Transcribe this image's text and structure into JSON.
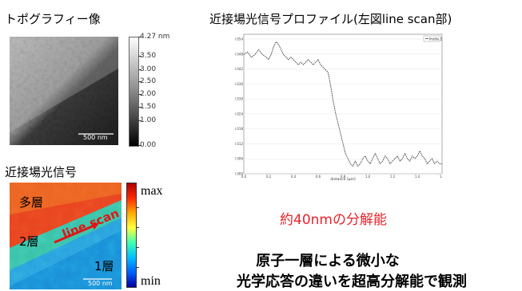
{
  "topography": {
    "title": "トポグラフィー像",
    "scalebar": "500 nm",
    "colorbar_ticks": [
      "4.27 nm",
      "3.50",
      "3.00",
      "2.50",
      "2.00",
      "1.50",
      "1.00",
      "0.00"
    ]
  },
  "nearfield": {
    "title": "近接場光信号",
    "scalebar": "500 nm",
    "labels": {
      "multi": "多層",
      "two": "2層",
      "one": "1層",
      "scan": "line scan"
    },
    "colorbar": {
      "max": "max",
      "min": "min"
    }
  },
  "profile": {
    "title": "近接場光信号プロファイル(左図line scan部)",
    "legend": "Profile 1",
    "resolution_label": "約40nmの分解能",
    "marker_color": "#e8232a",
    "chart_data": {
      "type": "line",
      "x": [
        0.0,
        0.03,
        0.06,
        0.09,
        0.12,
        0.15,
        0.18,
        0.2,
        0.22,
        0.24,
        0.26,
        0.28,
        0.3,
        0.32,
        0.34,
        0.36,
        0.38,
        0.4,
        0.42,
        0.44,
        0.46,
        0.48,
        0.5,
        0.52,
        0.54,
        0.56,
        0.58,
        0.6,
        0.62,
        0.64,
        0.66,
        0.68,
        0.7,
        0.72,
        0.74,
        0.76,
        0.78,
        0.8,
        0.82,
        0.84,
        0.86,
        0.88,
        0.9,
        0.92,
        0.94,
        0.96,
        0.98,
        1.0,
        1.02,
        1.04,
        1.06,
        1.08,
        1.1,
        1.12,
        1.14,
        1.16,
        1.18,
        1.2,
        1.22,
        1.24,
        1.26,
        1.28,
        1.3,
        1.32,
        1.34,
        1.36,
        1.38,
        1.4,
        1.42,
        1.44,
        1.46,
        1.48,
        1.5,
        1.52,
        1.54,
        1.56,
        1.58,
        1.6
      ],
      "values": [
        0.047,
        0.048,
        0.046,
        0.047,
        0.049,
        0.047,
        0.046,
        0.045,
        0.047,
        0.05,
        0.052,
        0.051,
        0.049,
        0.047,
        0.046,
        0.045,
        0.046,
        0.045,
        0.044,
        0.043,
        0.044,
        0.043,
        0.044,
        0.045,
        0.044,
        0.043,
        0.044,
        0.045,
        0.043,
        0.042,
        0.041,
        0.04,
        0.035,
        0.029,
        0.024,
        0.02,
        0.016,
        0.012,
        0.008,
        0.006,
        0.004,
        0.003,
        0.005,
        0.003,
        0.004,
        0.006,
        0.007,
        0.005,
        0.004,
        0.006,
        0.008,
        0.006,
        0.004,
        0.005,
        0.007,
        0.006,
        0.004,
        0.005,
        0.006,
        0.007,
        0.005,
        0.006,
        0.008,
        0.006,
        0.005,
        0.007,
        0.006,
        0.007,
        0.009,
        0.007,
        0.006,
        0.004,
        0.005,
        0.006,
        0.004,
        0.005,
        0.004,
        0.004
      ],
      "xlim": [
        0,
        1.6
      ],
      "ylim": [
        0,
        0.055
      ],
      "x_ticks": [
        "0.0",
        "0.2",
        "0.4",
        "0.6",
        "0.8",
        "1.0",
        "1.2",
        "1.4",
        "1.6"
      ],
      "y_ticks": [
        "0.054",
        "0.048",
        "0.042",
        "0.036",
        "0.030",
        "0.024",
        "0.018",
        "0.012",
        "0.006",
        "0.000"
      ],
      "xlabel": "distance [µm]",
      "markers_x": [
        0.9,
        1.01
      ]
    }
  },
  "conclusion": {
    "line1": "原子一層による微小な",
    "line2": "光学応答の違いを超高分解能で観測"
  }
}
